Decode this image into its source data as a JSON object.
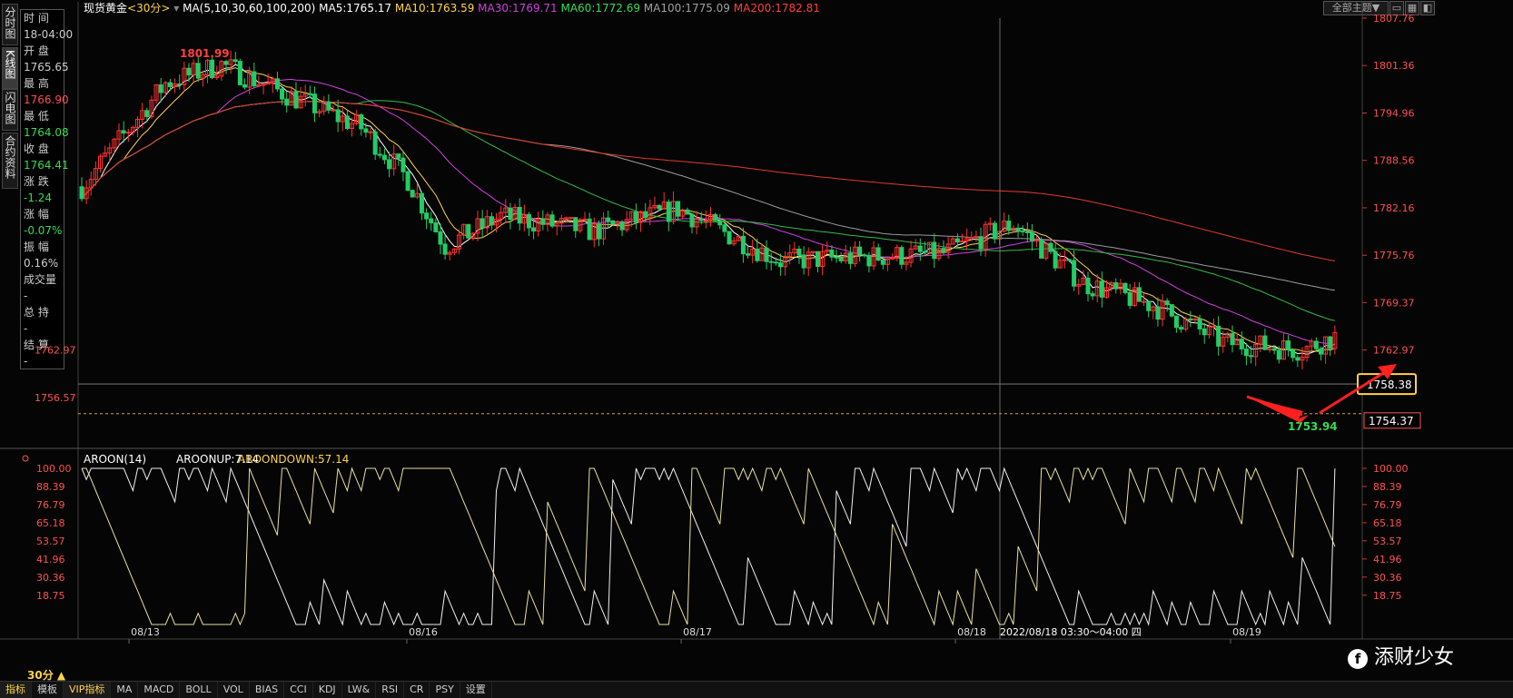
{
  "left_tabs": [
    {
      "label": "分时图"
    },
    {
      "label": "K线图"
    },
    {
      "label": "闪电图"
    },
    {
      "label": "合约资料"
    }
  ],
  "info": [
    {
      "label": "时 间",
      "value": "18-04:00",
      "color": "#cccccc"
    },
    {
      "label": "开 盘",
      "value": "1765.65",
      "color": "#cccccc"
    },
    {
      "label": "最 高",
      "value": "1766.90",
      "color": "#ff4d4d"
    },
    {
      "label": "最 低",
      "value": "1764.08",
      "color": "#33dd55"
    },
    {
      "label": "收 盘",
      "value": "1764.41",
      "color": "#33dd55"
    },
    {
      "label": "涨 跌",
      "value": "-1.24",
      "color": "#33dd55"
    },
    {
      "label": "涨 幅",
      "value": "-0.07%",
      "color": "#33dd55"
    },
    {
      "label": "振 幅",
      "value": "0.16%",
      "color": "#cccccc"
    },
    {
      "label": "成交量",
      "value": "-",
      "color": "#cccccc"
    },
    {
      "label": "总 持",
      "value": "-",
      "color": "#cccccc"
    },
    {
      "label": "结 算",
      "value": "-",
      "color": "#cccccc"
    }
  ],
  "header": {
    "symbol": "现货黄金",
    "period": "<30分>",
    "ma_label": "MA(5,10,30,60,100,200)",
    "ma": [
      {
        "text": "MA5:1765.17",
        "color": "#ffffff"
      },
      {
        "text": "MA10:1763.59",
        "color": "#ffd24a"
      },
      {
        "text": "MA30:1769.71",
        "color": "#d040e0"
      },
      {
        "text": "MA60:1772.69",
        "color": "#33dd55"
      },
      {
        "text": "MA100:1775.09",
        "color": "#a0a0a0"
      },
      {
        "text": "MA200:1782.81",
        "color": "#ff4040"
      }
    ],
    "theme_select": "全部主题▼"
  },
  "price_axis": {
    "ticks": [
      "1807.76",
      "1801.36",
      "1794.96",
      "1788.56",
      "1782.16",
      "1775.76",
      "1769.37",
      "1762.97"
    ],
    "left_ticks": [
      "1762.97",
      "1756.57"
    ],
    "crosshair_price": "1758.38",
    "last_price": "1754.37",
    "high_label": "1801.99",
    "low_label": "1753.94"
  },
  "indicator": {
    "title": "AROON(14)",
    "up": "AROONUP:7.14",
    "down": "AROONDOWN:57.14",
    "ticks": [
      "100.00",
      "88.39",
      "76.79",
      "65.18",
      "53.57",
      "41.96",
      "30.36",
      "18.75"
    ],
    "right_ticks": [
      "100.00",
      "88.39",
      "76.79",
      "65.18",
      "53.57",
      "41.96",
      "30.36",
      "18.75"
    ]
  },
  "dates": [
    "08/13",
    "08/16",
    "08/17",
    "08/18",
    "08/19"
  ],
  "crosshair_time": "2022/08/18 03:30～04:00 四",
  "period_button": "30分 ▲",
  "bottom_tabs": [
    "指标",
    "模板",
    "VIP指标",
    "MA",
    "MACD",
    "BOLL",
    "VOL",
    "BIAS",
    "CCI",
    "KDJ",
    "LW&",
    "RSI",
    "CR",
    "PSY",
    "设置"
  ],
  "watermark": "添财少女",
  "colors": {
    "up": "#ff3030",
    "down": "#22cc66",
    "ma5": "#ffffff",
    "ma10": "#ffd24a",
    "ma30": "#d040e0",
    "ma60": "#33bb44",
    "ma100": "#9a9a9a",
    "ma200": "#e03a2a",
    "aroon": "#e8e0a0"
  }
}
